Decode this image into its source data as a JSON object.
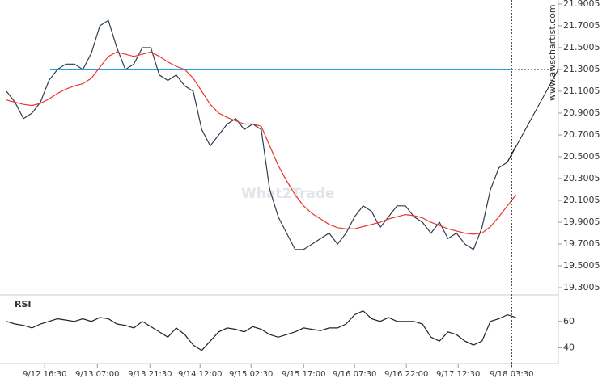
{
  "chart_data": [
    {
      "type": "line",
      "watermark": "What2Trade",
      "source": "www.awschartist.com",
      "x": [
        0,
        1,
        2,
        3,
        4,
        5,
        6,
        7,
        8,
        9,
        10,
        11,
        12,
        13,
        14,
        15,
        16,
        17,
        18,
        19,
        20,
        21,
        22,
        23,
        24,
        25,
        26,
        27,
        28,
        29,
        30,
        31,
        32,
        33,
        34,
        35,
        36,
        37,
        38,
        39,
        40,
        41,
        42,
        43,
        44,
        45,
        46,
        47,
        48,
        49,
        50,
        51,
        52,
        53,
        54,
        55,
        56,
        57,
        58,
        59,
        60
      ],
      "xlim": [
        0,
        65
      ],
      "xticks": [
        {
          "value": 4.5,
          "label": "9/12 16:30"
        },
        {
          "value": 10.7,
          "label": "9/13 07:00"
        },
        {
          "value": 16.9,
          "label": "9/13 21:30"
        },
        {
          "value": 22.8,
          "label": "9/14 12:00"
        },
        {
          "value": 28.8,
          "label": "9/15 02:30"
        },
        {
          "value": 35,
          "label": "9/15 17:00"
        },
        {
          "value": 41,
          "label": "9/16 07:30"
        },
        {
          "value": 47.1,
          "label": "9/16 22:00"
        },
        {
          "value": 53.2,
          "label": "9/17 12:30"
        },
        {
          "value": 59.5,
          "label": "9/18 03:30"
        }
      ],
      "ylim": [
        19.234,
        21.937
      ],
      "yticks": [
        21.9005,
        21.7005,
        21.5005,
        21.3005,
        21.1005,
        20.9005,
        20.7005,
        20.5005,
        20.3005,
        20.1005,
        19.9005,
        19.7005,
        19.5005,
        19.3005
      ],
      "level": {
        "value": 21.3005,
        "color": "#29a3e0"
      },
      "series": [
        {
          "color": "#2f3e4e",
          "values": [
            21.1,
            21.0,
            20.85,
            20.9,
            21.0,
            21.2,
            21.3,
            21.35,
            21.35,
            21.3,
            21.45,
            21.7,
            21.75,
            21.5,
            21.3,
            21.35,
            21.5,
            21.5,
            21.25,
            21.2,
            21.25,
            21.15,
            21.1,
            20.75,
            20.6,
            20.7,
            20.8,
            20.85,
            20.75,
            20.8,
            20.75,
            20.2,
            19.95,
            19.8,
            19.65,
            19.65,
            19.7,
            19.75,
            19.8,
            19.7,
            19.8,
            19.95,
            20.05,
            20.0,
            19.85,
            19.95,
            20.05,
            20.05,
            19.95,
            19.9,
            19.8,
            19.9,
            19.75,
            19.8,
            19.7,
            19.65,
            19.85,
            20.2,
            20.4,
            20.45,
            20.6
          ]
        },
        {
          "color": "#e8372f",
          "values": [
            21.02,
            21.0,
            20.98,
            20.97,
            20.99,
            21.03,
            21.08,
            21.12,
            21.15,
            21.17,
            21.22,
            21.32,
            21.42,
            21.46,
            21.44,
            21.42,
            21.44,
            21.46,
            21.42,
            21.37,
            21.33,
            21.3,
            21.22,
            21.1,
            20.98,
            20.9,
            20.86,
            20.83,
            20.8,
            20.8,
            20.78,
            20.6,
            20.42,
            20.28,
            20.15,
            20.05,
            19.98,
            19.93,
            19.88,
            19.85,
            19.84,
            19.84,
            19.86,
            19.88,
            19.9,
            19.93,
            19.95,
            19.97,
            19.96,
            19.94,
            19.9,
            19.87,
            19.84,
            19.82,
            19.8,
            19.79,
            19.8,
            19.86,
            19.95,
            20.05,
            20.15
          ]
        }
      ]
    },
    {
      "type": "line",
      "title": "RSI",
      "x": [
        0,
        1,
        2,
        3,
        4,
        5,
        6,
        7,
        8,
        9,
        10,
        11,
        12,
        13,
        14,
        15,
        16,
        17,
        18,
        19,
        20,
        21,
        22,
        23,
        24,
        25,
        26,
        27,
        28,
        29,
        30,
        31,
        32,
        33,
        34,
        35,
        36,
        37,
        38,
        39,
        40,
        41,
        42,
        43,
        44,
        45,
        46,
        47,
        48,
        49,
        50,
        51,
        52,
        53,
        54,
        55,
        56,
        57,
        58,
        59,
        60
      ],
      "xlim": [
        0,
        65
      ],
      "ylim": [
        28,
        77
      ],
      "yticks": [
        40,
        60
      ],
      "series": [
        {
          "color": "#222222",
          "values": [
            60,
            58,
            57,
            55,
            58,
            60,
            62,
            61,
            60,
            62,
            60,
            63,
            62,
            58,
            57,
            55,
            60,
            56,
            52,
            48,
            55,
            50,
            42,
            38,
            45,
            52,
            55,
            54,
            52,
            56,
            54,
            50,
            48,
            50,
            52,
            55,
            54,
            53,
            55,
            55,
            58,
            65,
            68,
            62,
            60,
            63,
            60,
            60,
            60,
            58,
            48,
            45,
            52,
            50,
            45,
            42,
            45,
            60,
            62,
            65,
            63
          ]
        }
      ]
    }
  ]
}
